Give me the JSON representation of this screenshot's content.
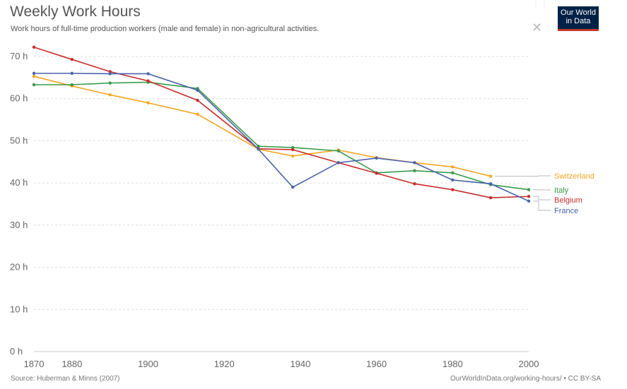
{
  "header": {
    "title": "Weekly Work Hours",
    "subtitle": "Work hours of full-time production workers (male and female) in non-agricultural activities."
  },
  "logo": {
    "line1": "Our World",
    "line2": "in Data"
  },
  "footer": {
    "source": "Source: Huberman & Minns (2007)",
    "url": "OurWorldInData.org/working-hours/",
    "license": "CC BY-SA"
  },
  "chart_data": {
    "type": "line",
    "title": "Weekly Work Hours",
    "xlabel": "",
    "ylabel": "",
    "xlim": [
      1870,
      2000
    ],
    "ylim": [
      0,
      70
    ],
    "x_ticks": [
      1870,
      1880,
      1900,
      1920,
      1940,
      1960,
      1980,
      2000
    ],
    "y_ticks": [
      {
        "value": 0,
        "label": "0 h"
      },
      {
        "value": 10,
        "label": "10 h"
      },
      {
        "value": 20,
        "label": "20 h"
      },
      {
        "value": 30,
        "label": "30 h"
      },
      {
        "value": 40,
        "label": "40 h"
      },
      {
        "value": 50,
        "label": "50 h"
      },
      {
        "value": 60,
        "label": "60 h"
      },
      {
        "value": 70,
        "label": "70 h"
      }
    ],
    "grid": true,
    "series": [
      {
        "name": "Switzerland",
        "color": "#f5a623",
        "x": [
          1870,
          1880,
          1890,
          1900,
          1913,
          1929,
          1938,
          1950,
          1960,
          1970,
          1980,
          1990
        ],
        "values": [
          65.3,
          63.0,
          60.9,
          59.0,
          56.3,
          48.0,
          46.4,
          47.8,
          46.0,
          44.8,
          43.8,
          41.6
        ]
      },
      {
        "name": "Italy",
        "color": "#3a9a4a",
        "x": [
          1870,
          1880,
          1890,
          1900,
          1913,
          1929,
          1938,
          1950,
          1960,
          1970,
          1980,
          1990,
          2000
        ],
        "values": [
          63.3,
          63.3,
          63.7,
          63.9,
          62.4,
          48.7,
          48.4,
          47.6,
          42.4,
          42.9,
          42.4,
          39.6,
          38.4
        ]
      },
      {
        "name": "Belgium",
        "color": "#c62d2d",
        "x": [
          1870,
          1880,
          1890,
          1900,
          1913,
          1929,
          1938,
          1950,
          1960,
          1970,
          1980,
          1990,
          2000
        ],
        "values": [
          72.2,
          69.3,
          66.4,
          64.2,
          59.6,
          48.1,
          47.9,
          44.8,
          42.3,
          39.8,
          38.4,
          36.5,
          36.8
        ]
      },
      {
        "name": "France",
        "color": "#4a63ab",
        "x": [
          1870,
          1880,
          1890,
          1900,
          1913,
          1929,
          1938,
          1950,
          1960,
          1970,
          1980,
          1990,
          2000
        ],
        "values": [
          66.0,
          66.0,
          65.9,
          65.9,
          62.0,
          48.0,
          39.0,
          44.8,
          45.9,
          44.8,
          40.7,
          39.8,
          35.7
        ]
      }
    ]
  }
}
